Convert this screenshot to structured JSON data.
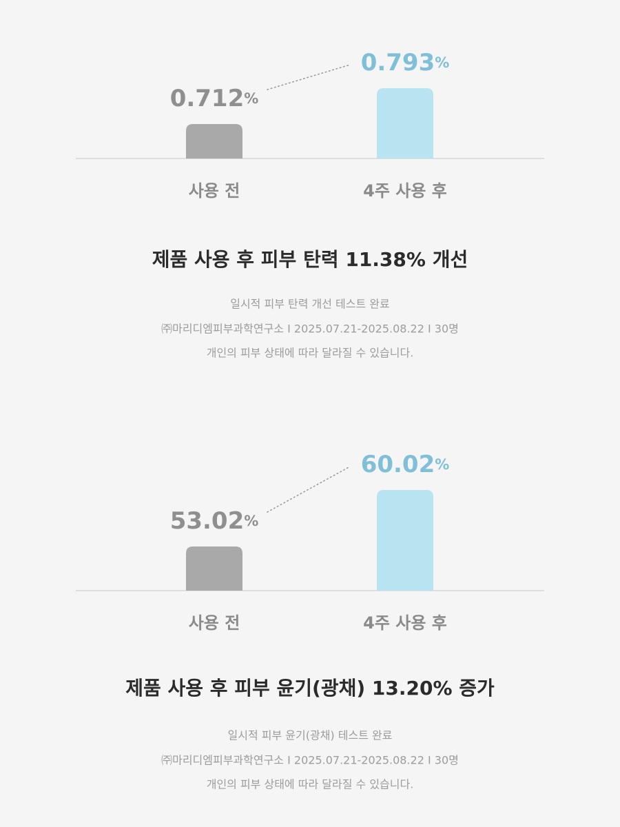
{
  "chart_data": [
    {
      "type": "bar",
      "categories": [
        "사용 전",
        "4주 사용 후"
      ],
      "values": [
        0.712,
        0.793
      ],
      "value_labels": [
        "0.712%",
        "0.793%"
      ],
      "colors": [
        "#a9a9a9",
        "#b8e3f0"
      ],
      "label_colors": [
        "#8f8f8f",
        "#7fbfd8"
      ],
      "title": "제품 사용 후 피부 탄력 11.38% 개선",
      "notes": [
        "일시적 피부 탄력 개선 테스트 완료",
        "㈜마리디엠피부과학연구소 I 2025.07.21-2025.08.22 I 30명",
        "개인의 피부 상태에 따라 달라질 수 있습니다."
      ]
    },
    {
      "type": "bar",
      "categories": [
        "사용 전",
        "4주 사용 후"
      ],
      "values": [
        53.02,
        60.02
      ],
      "value_labels": [
        "53.02%",
        "60.02%"
      ],
      "colors": [
        "#a9a9a9",
        "#b8e3f0"
      ],
      "label_colors": [
        "#8f8f8f",
        "#7fbfd8"
      ],
      "title": "제품 사용 후 피부 윤기(광채) 13.20% 증가",
      "notes": [
        "일시적 피부 윤기(광채) 테스트 완료",
        "㈜마리디엠피부과학연구소 I 2025.07.21-2025.08.22 I 30명",
        "개인의 피부 상태에 따라 달라질 수 있습니다."
      ]
    }
  ]
}
